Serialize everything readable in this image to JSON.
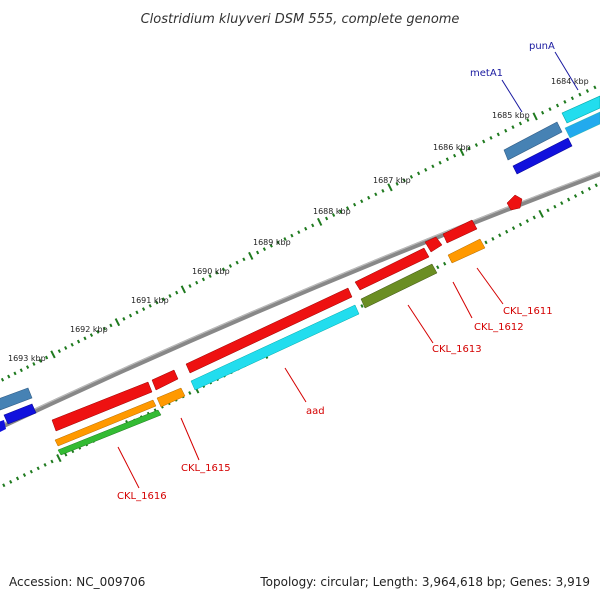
{
  "title": "Clostridium kluyveri DSM 555, complete genome",
  "footer": {
    "accession": "Accession: NC_009706",
    "summary": "Topology: circular; Length: 3,964,618 bp; Genes: 3,919"
  },
  "ticks": [
    "1684 kbp",
    "1685 kbp",
    "1686 kbp",
    "1687 kbp",
    "1688 kbp",
    "1689 kbp",
    "1690 kbp",
    "1691 kbp",
    "1692 kbp",
    "1693 kbp"
  ],
  "gene_labels": [
    {
      "name": "punA",
      "color": "blue"
    },
    {
      "name": "metA1",
      "color": "blue"
    },
    {
      "name": "CKL_1611",
      "color": "red"
    },
    {
      "name": "CKL_1612",
      "color": "red"
    },
    {
      "name": "CKL_1613",
      "color": "red"
    },
    {
      "name": "aad",
      "color": "red"
    },
    {
      "name": "CKL_1615",
      "color": "red"
    },
    {
      "name": "CKL_1616",
      "color": "red"
    }
  ],
  "colors": {
    "cds": "#ee1111",
    "cyan": "#22ddee",
    "olive": "#6b8e23",
    "orange": "#ff9900",
    "green": "#33bb33",
    "steel": "#4682b4",
    "blue": "#1111dd",
    "backbone": "#7a7a7a",
    "tick_green": "#1f7a1f"
  }
}
